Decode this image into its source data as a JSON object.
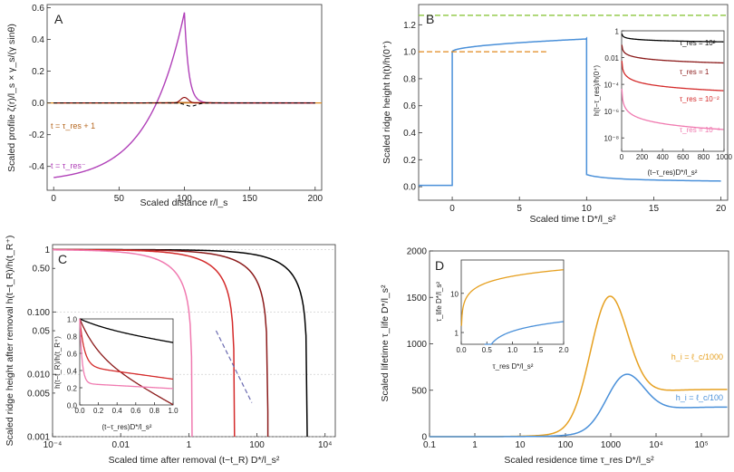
{
  "chart_data": [
    {
      "id": "A",
      "type": "line",
      "panel_label": "A",
      "xlabel": "Scaled distance r/l_s",
      "ylabel": "Scaled profile ζ(r)/l_s × γ_s/(γ sinθ)",
      "xlim": [
        -5,
        205
      ],
      "ylim": [
        -0.55,
        0.62
      ],
      "xticks": [
        0,
        50,
        100,
        150,
        200
      ],
      "yticks": [
        -0.4,
        -0.2,
        0.0,
        0.2,
        0.4,
        0.6
      ],
      "ytick_labels": [
        "-0.4",
        "-0.2",
        "0.0",
        "0.2",
        "0.4",
        "0.6"
      ],
      "series": [
        {
          "name": "t = τ_res⁻",
          "color": "#b040b8",
          "kind": "profile_rise",
          "params": {
            "ymin": -0.5,
            "ymax": 0.57,
            "r0": 100,
            "decay": 28
          }
        },
        {
          "name": "t = τ_res + 1",
          "color": "#b5651d",
          "kind": "bump",
          "params": {
            "amp": 0.003,
            "r0": 100,
            "w": 25
          }
        },
        {
          "name": "dark red",
          "color": "#8b0000",
          "kind": "bump",
          "params": {
            "amp": 0.035,
            "r0": 100,
            "w": 4
          }
        },
        {
          "name": "black dashed",
          "color": "#000000",
          "dash": "4,3",
          "kind": "bump",
          "params": {
            "amp": -0.02,
            "r0": 105,
            "w": 6
          }
        }
      ],
      "annotations": [
        {
          "text": "t = τ_res + 1",
          "color": "#b5651d"
        },
        {
          "text": "t = τ_res⁻",
          "color": "#b040b8"
        }
      ]
    },
    {
      "id": "B",
      "type": "line",
      "panel_label": "B",
      "xlabel": "Scaled time t D*/l_s²",
      "ylabel": "Scaled ridge height h(t)/h(0⁺)",
      "xlim": [
        -2.5,
        20.5
      ],
      "ylim": [
        -0.1,
        1.35
      ],
      "xticks": [
        0,
        5,
        10,
        15,
        20
      ],
      "yticks": [
        0.0,
        0.2,
        0.4,
        0.6,
        0.8,
        1.0,
        1.2
      ],
      "ytick_labels": [
        "0.0",
        "0.2",
        "0.4",
        "0.6",
        "0.8",
        "1.0",
        "1.2"
      ],
      "series": [
        {
          "name": "ridge height",
          "color": "#4a90d9",
          "kind": "ridge_B"
        },
        {
          "name": "green reference",
          "color": "#8cc63f",
          "dash": "6,3",
          "y": 1.27,
          "x_range": [
            -2.5,
            20.5
          ]
        },
        {
          "name": "orange reference",
          "color": "#e08a1e",
          "dash": "6,3",
          "y": 1.0,
          "x_range": [
            -2.5,
            7
          ]
        }
      ],
      "inset": {
        "ylabel": "h(t−τ_res)/h(0⁺)",
        "xlabel": "(t−τ_res)D*/l_s²",
        "xlim": [
          0,
          1000
        ],
        "ylim_log": [
          -9,
          0
        ],
        "xticks": [
          0,
          200,
          400,
          600,
          800,
          1000
        ],
        "yticks_exp": [
          0,
          -2,
          -4,
          -6,
          -8
        ],
        "ytick_labels": [
          "1",
          "0.01",
          "10⁻⁴",
          "10⁻⁶",
          "10⁻⁸"
        ],
        "series": [
          {
            "name": "τ_res = 10²",
            "color": "#000000",
            "params": {
              "a": -0.15,
              "b": 0.9
            }
          },
          {
            "name": "τ_res = 1",
            "color": "#8b1a1a",
            "params": {
              "a": -0.9,
              "b": 2.0
            }
          },
          {
            "name": "τ_res = 10⁻²",
            "color": "#d42a2a",
            "params": {
              "a": -2.0,
              "b": 3.3
            }
          },
          {
            "name": "τ_res = 10⁻⁴",
            "color": "#f07ab0",
            "params": {
              "a": -4.0,
              "b": 4.5
            }
          }
        ],
        "labels": [
          "τ_res = 10²",
          "τ_res = 1",
          "τ_res = 10⁻²",
          "τ_res = 10⁻⁴"
        ]
      }
    },
    {
      "id": "C",
      "type": "line",
      "panel_label": "C",
      "xlabel": "Scaled time after removal (t−t_R) D*/l_s²",
      "ylabel": "Scaled ridge height after removal h(t−t_R)/h(t_R⁺)",
      "x_scale": "log",
      "y_scale": "log",
      "xlim_exp": [
        -4,
        4.3
      ],
      "ylim_exp": [
        -3,
        0.08
      ],
      "xticks_exp": [
        -4,
        -2,
        0,
        2,
        4
      ],
      "xtick_labels": [
        "10⁻⁴",
        "0.01",
        "1",
        "100",
        "10⁴"
      ],
      "yticks_exp": [
        0,
        -1,
        -2,
        -3
      ],
      "ytick_labels": [
        "1",
        "0.100",
        "0.010",
        "0.001"
      ],
      "ytick_minor_labels": [
        "0.50",
        "0.05",
        "0.005"
      ],
      "series": [
        {
          "name": "black",
          "color": "#000000",
          "params": {
            "T": 3000
          }
        },
        {
          "name": "dark red",
          "color": "#8b1a1a",
          "params": {
            "T": 210
          }
        },
        {
          "name": "red",
          "color": "#d42a2a",
          "params": {
            "T": 22
          }
        },
        {
          "name": "pink",
          "color": "#f07ab0",
          "params": {
            "T": 1.25
          }
        }
      ],
      "reference": {
        "name": "purple dashed",
        "color": "#6a6ab0",
        "dash": "5,3",
        "x_range_exp": [
          0.8,
          1.9
        ]
      },
      "inset": {
        "ylabel": "h(t−t_R)/h(t_R⁺)",
        "xlabel": "(t−τ_res)D*/l_s²",
        "xlim": [
          0,
          1.0
        ],
        "ylim": [
          0,
          1.0
        ],
        "xticks": [
          0.0,
          0.2,
          0.4,
          0.6,
          0.8,
          1.0
        ],
        "yticks": [
          0.0,
          0.2,
          0.4,
          0.6,
          0.8,
          1.0
        ],
        "series": [
          {
            "name": "black",
            "color": "#000000",
            "params": {
              "k": 0.1,
              "a": 0.1,
              "m": 3
            }
          },
          {
            "name": "dark red",
            "color": "#8b1a1a",
            "params": {
              "k": 0.2,
              "a": 0.4,
              "m": 5
            }
          },
          {
            "name": "red",
            "color": "#d42a2a",
            "params": {
              "k": 0.05,
              "a": 0.55,
              "m": 20
            }
          },
          {
            "name": "pink",
            "color": "#f07ab0",
            "params": {
              "k": 0.02,
              "a": 0.75,
              "m": 40
            }
          }
        ]
      }
    },
    {
      "id": "D",
      "type": "line",
      "panel_label": "D",
      "xlabel": "Scaled residence time τ_res D*/l_s²",
      "ylabel": "Scaled lifetime τ_life D*/l_s²",
      "x_scale": "log",
      "xlim_exp": [
        -1,
        5.6
      ],
      "ylim": [
        0,
        2000
      ],
      "xticks_exp": [
        -1,
        0,
        1,
        2,
        3,
        4,
        5
      ],
      "xtick_labels": [
        "0.1",
        "1",
        "10",
        "100",
        "1000",
        "10⁴",
        "10⁵"
      ],
      "yticks": [
        0,
        500,
        1000,
        1500,
        2000
      ],
      "series": [
        {
          "name": "h_i = ℓ_c/1000",
          "color": "#e6a020",
          "params": {
            "base": 100,
            "plateau": 510,
            "peak": 1650,
            "c": 2.9,
            "w": 0.6
          }
        },
        {
          "name": "h_i = ℓ_c/100",
          "color": "#4a90d9",
          "params": {
            "base": 10,
            "plateau": 320,
            "peak": 720,
            "c": 3.25,
            "w": 0.6
          }
        }
      ],
      "labels": [
        "h_i = ℓ_c/1000",
        "h_i = ℓ_c/100"
      ],
      "inset": {
        "ylabel": "τ_life D*/l_s²",
        "xlabel": "τ_res D*/l_s²",
        "xlim": [
          0,
          2.0
        ],
        "ylim_log": [
          -0.3,
          1.85
        ],
        "xticks": [
          0.0,
          0.5,
          1.0,
          1.5,
          2.0
        ],
        "xtick_labels": [
          "0.0",
          "0.5",
          "1.0",
          "1.5",
          "2.0"
        ],
        "yticks_exp": [
          0,
          1
        ],
        "ytick_labels": [
          "1",
          "10"
        ],
        "series": [
          {
            "name": "h_i = ℓ_c/1000",
            "color": "#e6a020",
            "params": {
              "x0": 0.0,
              "a": 2.0,
              "b": 40
            }
          },
          {
            "name": "h_i = ℓ_c/100",
            "color": "#4a90d9",
            "params": {
              "x0": 0.45,
              "a": 0.5,
              "b": 1.9
            }
          }
        ]
      }
    }
  ]
}
